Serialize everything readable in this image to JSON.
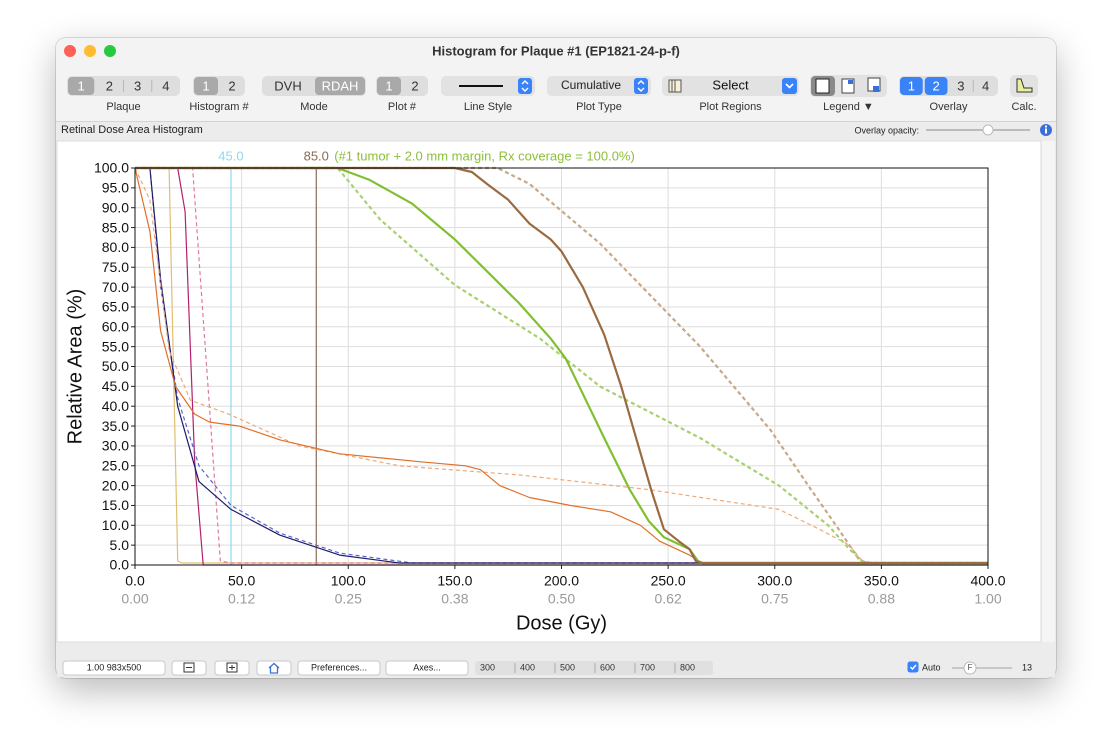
{
  "window": {
    "title": "Histogram for Plaque #1 (EP1821-24-p-f)"
  },
  "toolbar": {
    "groups": [
      {
        "label": "Plaque",
        "control": "segmented",
        "buttons": [
          "1",
          "2",
          "3",
          "4"
        ],
        "selected": [
          0
        ]
      },
      {
        "label": "Histogram #",
        "control": "segmented",
        "buttons": [
          "1",
          "2"
        ],
        "selected": [
          0
        ]
      },
      {
        "label": "Mode",
        "control": "segmented",
        "buttons": [
          "DVH",
          "RDAH"
        ],
        "selected": [
          1
        ]
      },
      {
        "label": "Plot #",
        "control": "segmented",
        "buttons": [
          "1",
          "2"
        ],
        "selected": [
          0
        ]
      },
      {
        "label": "Line Style",
        "control": "line-popup"
      },
      {
        "label": "Plot Type",
        "control": "popup",
        "value": "Cumulative"
      },
      {
        "label": "Plot Regions",
        "control": "select-popup",
        "value": "Select"
      },
      {
        "label": "Legend ▼",
        "control": "icons"
      },
      {
        "label": "Overlay",
        "control": "segmented",
        "buttons": [
          "1",
          "2",
          "3",
          "4"
        ],
        "selected": [
          0,
          1
        ],
        "accent": "#3a82f7"
      },
      {
        "label": "Calc.",
        "control": "calc"
      }
    ]
  },
  "panel": {
    "title": "Retinal Dose Area Histogram",
    "opacity_label": "Overlay opacity:"
  },
  "chart_data": {
    "type": "line",
    "xlabel": "Dose (Gy)",
    "ylabel": "Relative Area (%)",
    "xlim": [
      0,
      400
    ],
    "ylim": [
      0,
      100
    ],
    "grid": true,
    "xticks": [
      {
        "value": 0,
        "label": "0.0"
      },
      {
        "value": 50,
        "label": "50.0"
      },
      {
        "value": 100,
        "label": "100.0"
      },
      {
        "value": 150,
        "label": "150.0"
      },
      {
        "value": 200,
        "label": "200.0"
      },
      {
        "value": 250,
        "label": "250.0"
      },
      {
        "value": 300,
        "label": "300.0"
      },
      {
        "value": 350,
        "label": "350.0"
      },
      {
        "value": 400,
        "label": "400.0"
      }
    ],
    "x2lim": [
      0,
      1
    ],
    "x2ticks": [
      {
        "value": 0,
        "label": "0.00"
      },
      {
        "value": 0.125,
        "label": "0.12"
      },
      {
        "value": 0.25,
        "label": "0.25"
      },
      {
        "value": 0.375,
        "label": "0.38"
      },
      {
        "value": 0.5,
        "label": "0.50"
      },
      {
        "value": 0.625,
        "label": "0.62"
      },
      {
        "value": 0.75,
        "label": "0.75"
      },
      {
        "value": 0.875,
        "label": "0.88"
      },
      {
        "value": 1,
        "label": "1.00"
      }
    ],
    "yticks": [
      {
        "value": 0,
        "label": "0.0"
      },
      {
        "value": 5,
        "label": "5.0"
      },
      {
        "value": 10,
        "label": "10.0"
      },
      {
        "value": 15,
        "label": "15.0"
      },
      {
        "value": 20,
        "label": "20.0"
      },
      {
        "value": 25,
        "label": "25.0"
      },
      {
        "value": 30,
        "label": "30.0"
      },
      {
        "value": 35,
        "label": "35.0"
      },
      {
        "value": 40,
        "label": "40.0"
      },
      {
        "value": 45,
        "label": "45.0"
      },
      {
        "value": 50,
        "label": "50.0"
      },
      {
        "value": 55,
        "label": "55.0"
      },
      {
        "value": 60,
        "label": "60.0"
      },
      {
        "value": 65,
        "label": "65.0"
      },
      {
        "value": 70,
        "label": "70.0"
      },
      {
        "value": 75,
        "label": "75.0"
      },
      {
        "value": 80,
        "label": "80.0"
      },
      {
        "value": 85,
        "label": "85.0"
      },
      {
        "value": 90,
        "label": "90.0"
      },
      {
        "value": 95,
        "label": "95.0"
      },
      {
        "value": 100,
        "label": "100.0"
      }
    ],
    "vlines": [
      {
        "value": 45,
        "label": "45.0",
        "color": "#8fd8f0"
      },
      {
        "value": 85,
        "label": "85.0",
        "color": "#8c6a55"
      }
    ],
    "annotation": {
      "text": "(#1 tumor + 2.0 mm margin, Rx coverage = 100.0%)",
      "color": "#8cbf3a"
    },
    "series": [
      {
        "color": "#e0c070",
        "style": "solid",
        "weight": "thin",
        "x": [
          0,
          16,
          20,
          22,
          400
        ],
        "values": [
          100,
          100,
          1,
          0.5,
          0.5
        ]
      },
      {
        "color": "#e07a98",
        "style": "dashed",
        "weight": "thin",
        "x": [
          0,
          27,
          40,
          45,
          400
        ],
        "values": [
          100,
          100,
          1,
          0.5,
          0.5
        ]
      },
      {
        "color": "#b0206e",
        "style": "solid",
        "weight": "thin",
        "x": [
          0,
          20,
          23.5,
          28,
          32,
          400
        ],
        "values": [
          100,
          100,
          89,
          26,
          0,
          0
        ]
      },
      {
        "color": "#5566c8",
        "style": "dashed",
        "weight": "thin",
        "x": [
          0,
          7,
          12,
          20,
          30,
          45,
          68,
          96,
          130,
          400
        ],
        "values": [
          100,
          100,
          70,
          42,
          25,
          15,
          8,
          3,
          0.5,
          0.5
        ]
      },
      {
        "color": "#1c1c6e",
        "style": "solid",
        "weight": "thin",
        "x": [
          0,
          7,
          12,
          20,
          30,
          45,
          68,
          96,
          124,
          400
        ],
        "values": [
          100,
          100,
          72,
          40,
          21,
          14,
          7.5,
          2.5,
          0.5,
          0.5
        ]
      },
      {
        "color": "#f0a878",
        "style": "dashed",
        "weight": "thin",
        "x": [
          0,
          7,
          16,
          26,
          44,
          77,
          124,
          180,
          241,
          302,
          321,
          335,
          341,
          345,
          400
        ],
        "values": [
          100,
          92,
          54,
          41.5,
          38,
          30,
          25,
          22.7,
          19,
          14,
          9,
          5,
          1,
          0.5,
          0.5
        ]
      },
      {
        "color": "#e0702a",
        "style": "solid",
        "weight": "thin",
        "x": [
          0,
          7,
          12,
          19,
          28,
          35,
          49,
          68,
          96,
          134,
          155,
          162,
          171,
          185,
          204,
          223,
          237,
          246,
          260,
          265,
          267,
          400
        ],
        "values": [
          100,
          84,
          59,
          45,
          38,
          36,
          35,
          31.5,
          28,
          26,
          25,
          24,
          20,
          17,
          15,
          13.4,
          10,
          6,
          2.5,
          0.8,
          0.5,
          0.5
        ]
      },
      {
        "color": "#c8a888",
        "style": "dashed",
        "weight": "thick",
        "x": [
          0,
          170,
          185,
          218,
          265,
          298,
          317,
          330,
          340,
          345,
          400
        ],
        "values": [
          100,
          100,
          96,
          81,
          55,
          34,
          19,
          9,
          1,
          0.5,
          0.5
        ]
      },
      {
        "color": "#a8d070",
        "style": "dashed",
        "weight": "thick",
        "x": [
          0,
          95,
          115,
          150,
          190,
          218,
          265,
          302,
          325,
          335,
          341,
          345,
          400
        ],
        "values": [
          100,
          100,
          87,
          70.5,
          57,
          45,
          32,
          20,
          10,
          4,
          1,
          0.5,
          0.5
        ]
      },
      {
        "color": "#80c030",
        "style": "solid",
        "weight": "thick",
        "x": [
          0,
          95,
          110,
          130,
          150,
          165,
          180,
          195,
          202,
          211,
          220,
          232,
          241,
          248,
          260,
          264,
          266,
          400
        ],
        "values": [
          100,
          100,
          97,
          91,
          82,
          74,
          66,
          57,
          52,
          42,
          32,
          19,
          11,
          7,
          4,
          1,
          0.5,
          0.5
        ]
      },
      {
        "color": "#9a6a40",
        "style": "solid",
        "weight": "thick",
        "x": [
          0,
          150,
          158,
          165,
          175,
          185,
          195,
          200,
          210,
          220,
          228,
          235,
          242,
          248,
          255,
          260,
          263,
          266,
          400
        ],
        "values": [
          100,
          100,
          99,
          96,
          92,
          86,
          82,
          79,
          70,
          58,
          45,
          32,
          19,
          9,
          6,
          4,
          1,
          0.5,
          0.5
        ]
      }
    ]
  },
  "footer": {
    "zoom": "1.00 983x500",
    "preferences": "Preferences...",
    "axes": "Axes...",
    "sizes": [
      "300",
      "400",
      "500",
      "600",
      "700",
      "800"
    ],
    "auto": "Auto",
    "auto_checked": true,
    "slider_knob": "F",
    "slider_value": "13"
  }
}
